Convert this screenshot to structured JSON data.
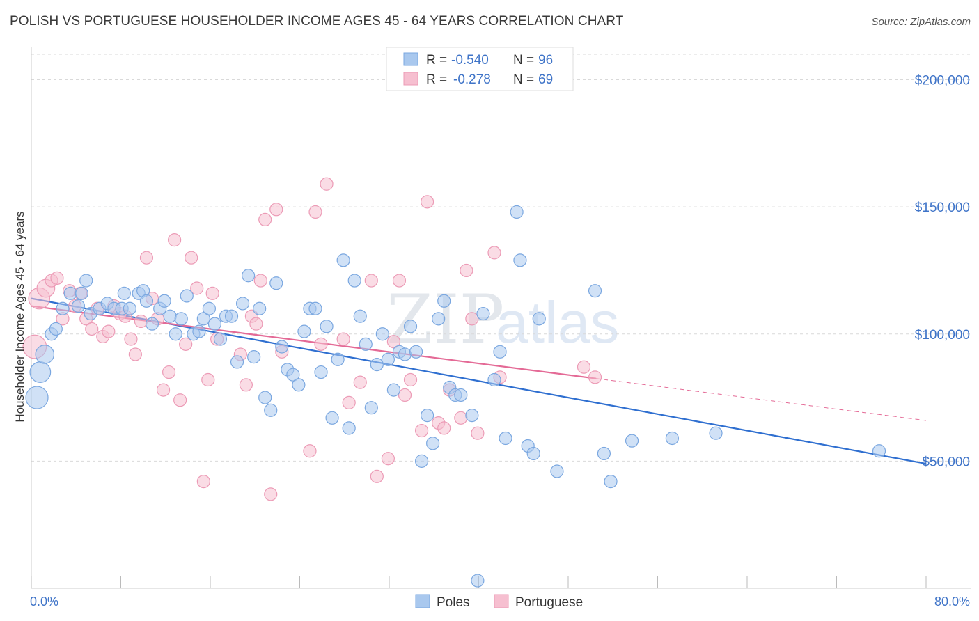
{
  "title": "POLISH VS PORTUGUESE HOUSEHOLDER INCOME AGES 45 - 64 YEARS CORRELATION CHART",
  "source": "Source: ZipAtlas.com",
  "watermark": {
    "zip": "ZIP",
    "atlas": "atlas"
  },
  "legend": {
    "poles": {
      "r_label": "R =",
      "r_value": "-0.540",
      "n_label": "N =",
      "n_value": "96"
    },
    "portuguese": {
      "r_label": "R =",
      "r_value": "-0.278",
      "n_label": "N =",
      "n_value": "69"
    }
  },
  "bottom_legend": {
    "poles": "Poles",
    "portuguese": "Portuguese"
  },
  "colors": {
    "poles_fill": "#a9c8ee",
    "poles_stroke": "#7aa7e0",
    "poles_line": "#2f6fd0",
    "portuguese_fill": "#f6bfd0",
    "portuguese_stroke": "#ec9bb6",
    "portuguese_line": "#e46a96",
    "axis_text": "#3f74c8",
    "grid": "#d9d9d9"
  },
  "chart_data": {
    "type": "scatter",
    "title": "POLISH VS PORTUGUESE HOUSEHOLDER INCOME AGES 45 - 64 YEARS CORRELATION CHART",
    "xlabel": "",
    "ylabel": "Householder Income Ages 45 - 64 years",
    "xlim": [
      0,
      80
    ],
    "ylim": [
      0,
      200000
    ],
    "x_tick_labels": [
      "0.0%",
      "80.0%"
    ],
    "y_ticks": [
      {
        "value": 200000,
        "label": "$200,000"
      },
      {
        "value": 150000,
        "label": "$150,000"
      },
      {
        "value": 100000,
        "label": "$100,000"
      },
      {
        "value": 50000,
        "label": "$50,000"
      }
    ],
    "legend_position": "top-center",
    "series": [
      {
        "name": "Poles",
        "trend": {
          "x": [
            0,
            80
          ],
          "y": [
            114000,
            49000
          ],
          "dashed_extension": false
        },
        "points": [
          [
            0.5,
            75000
          ],
          [
            0.8,
            85000
          ],
          [
            1.2,
            92000
          ],
          [
            1.8,
            100000
          ],
          [
            2.2,
            102000
          ],
          [
            2.8,
            110000
          ],
          [
            3.5,
            116000
          ],
          [
            4.2,
            111000
          ],
          [
            4.5,
            116000
          ],
          [
            4.9,
            121000
          ],
          [
            5.3,
            108000
          ],
          [
            6.1,
            110000
          ],
          [
            6.8,
            112000
          ],
          [
            7.4,
            110000
          ],
          [
            8.1,
            110000
          ],
          [
            8.3,
            116000
          ],
          [
            8.8,
            110000
          ],
          [
            9.6,
            116000
          ],
          [
            10.0,
            117000
          ],
          [
            10.3,
            113000
          ],
          [
            10.8,
            104000
          ],
          [
            11.5,
            110000
          ],
          [
            11.9,
            113000
          ],
          [
            12.4,
            107000
          ],
          [
            12.9,
            100000
          ],
          [
            13.4,
            106000
          ],
          [
            13.9,
            115000
          ],
          [
            14.5,
            100000
          ],
          [
            15.0,
            101000
          ],
          [
            15.4,
            106000
          ],
          [
            15.9,
            110000
          ],
          [
            16.4,
            104000
          ],
          [
            16.9,
            98000
          ],
          [
            17.4,
            107000
          ],
          [
            17.9,
            107000
          ],
          [
            18.4,
            89000
          ],
          [
            18.9,
            112000
          ],
          [
            19.4,
            123000
          ],
          [
            19.9,
            91000
          ],
          [
            20.4,
            110000
          ],
          [
            20.9,
            75000
          ],
          [
            21.4,
            70000
          ],
          [
            21.9,
            120000
          ],
          [
            22.4,
            95000
          ],
          [
            22.9,
            86000
          ],
          [
            23.4,
            84000
          ],
          [
            23.9,
            80000
          ],
          [
            24.4,
            101000
          ],
          [
            24.9,
            110000
          ],
          [
            25.4,
            110000
          ],
          [
            25.9,
            85000
          ],
          [
            26.4,
            103000
          ],
          [
            26.9,
            67000
          ],
          [
            27.4,
            90000
          ],
          [
            27.9,
            129000
          ],
          [
            28.4,
            63000
          ],
          [
            28.9,
            121000
          ],
          [
            29.4,
            107000
          ],
          [
            29.9,
            96000
          ],
          [
            30.4,
            71000
          ],
          [
            30.9,
            88000
          ],
          [
            31.4,
            100000
          ],
          [
            31.9,
            90000
          ],
          [
            32.4,
            78000
          ],
          [
            32.9,
            93000
          ],
          [
            33.4,
            92000
          ],
          [
            33.9,
            103000
          ],
          [
            34.4,
            93000
          ],
          [
            34.9,
            50000
          ],
          [
            35.4,
            68000
          ],
          [
            35.9,
            57000
          ],
          [
            36.4,
            106000
          ],
          [
            36.9,
            113000
          ],
          [
            37.4,
            79000
          ],
          [
            37.9,
            76000
          ],
          [
            38.4,
            76000
          ],
          [
            39.4,
            68000
          ],
          [
            39.9,
            3000
          ],
          [
            40.4,
            108000
          ],
          [
            41.4,
            82000
          ],
          [
            41.9,
            93000
          ],
          [
            42.4,
            59000
          ],
          [
            43.4,
            148000
          ],
          [
            43.7,
            129000
          ],
          [
            44.4,
            56000
          ],
          [
            44.9,
            53000
          ],
          [
            45.4,
            106000
          ],
          [
            47.0,
            46000
          ],
          [
            50.4,
            117000
          ],
          [
            51.2,
            53000
          ],
          [
            51.8,
            42000
          ],
          [
            53.7,
            58000
          ],
          [
            57.3,
            59000
          ],
          [
            61.2,
            61000
          ],
          [
            75.8,
            54000
          ]
        ]
      },
      {
        "name": "Portuguese",
        "trend": {
          "x": [
            0,
            50.5
          ],
          "y": [
            111000,
            82500
          ],
          "dashed_to": [
            80,
            66000
          ]
        },
        "points": [
          [
            0.3,
            95000
          ],
          [
            0.7,
            114000
          ],
          [
            1.3,
            118000
          ],
          [
            1.8,
            121000
          ],
          [
            2.3,
            122000
          ],
          [
            2.8,
            106000
          ],
          [
            3.4,
            117000
          ],
          [
            3.9,
            111000
          ],
          [
            4.4,
            116000
          ],
          [
            4.9,
            106000
          ],
          [
            5.4,
            102000
          ],
          [
            5.9,
            110000
          ],
          [
            6.4,
            99000
          ],
          [
            6.9,
            101000
          ],
          [
            7.4,
            111000
          ],
          [
            7.9,
            108000
          ],
          [
            8.4,
            107000
          ],
          [
            8.9,
            98000
          ],
          [
            9.3,
            92000
          ],
          [
            9.8,
            105000
          ],
          [
            10.3,
            130000
          ],
          [
            10.8,
            114000
          ],
          [
            11.3,
            106000
          ],
          [
            11.8,
            78000
          ],
          [
            12.3,
            85000
          ],
          [
            12.8,
            137000
          ],
          [
            13.3,
            74000
          ],
          [
            13.8,
            96000
          ],
          [
            14.3,
            130000
          ],
          [
            14.8,
            118000
          ],
          [
            15.4,
            42000
          ],
          [
            15.8,
            82000
          ],
          [
            16.2,
            116000
          ],
          [
            16.6,
            98000
          ],
          [
            18.7,
            92000
          ],
          [
            19.2,
            80000
          ],
          [
            19.7,
            107000
          ],
          [
            20.1,
            104000
          ],
          [
            20.5,
            121000
          ],
          [
            20.9,
            145000
          ],
          [
            21.4,
            37000
          ],
          [
            21.9,
            149000
          ],
          [
            22.4,
            93000
          ],
          [
            24.9,
            54000
          ],
          [
            25.4,
            148000
          ],
          [
            25.9,
            96000
          ],
          [
            26.4,
            159000
          ],
          [
            27.9,
            98000
          ],
          [
            28.4,
            73000
          ],
          [
            29.4,
            81000
          ],
          [
            30.4,
            121000
          ],
          [
            30.9,
            44000
          ],
          [
            31.9,
            51000
          ],
          [
            32.4,
            97000
          ],
          [
            32.9,
            121000
          ],
          [
            33.4,
            76000
          ],
          [
            33.9,
            82000
          ],
          [
            34.9,
            62000
          ],
          [
            35.4,
            152000
          ],
          [
            36.4,
            65000
          ],
          [
            36.9,
            63000
          ],
          [
            37.4,
            78000
          ],
          [
            38.4,
            67000
          ],
          [
            38.9,
            125000
          ],
          [
            39.4,
            106000
          ],
          [
            39.9,
            61000
          ],
          [
            41.4,
            132000
          ],
          [
            41.9,
            83000
          ],
          [
            49.4,
            87000
          ],
          [
            50.4,
            83000
          ]
        ]
      }
    ]
  }
}
